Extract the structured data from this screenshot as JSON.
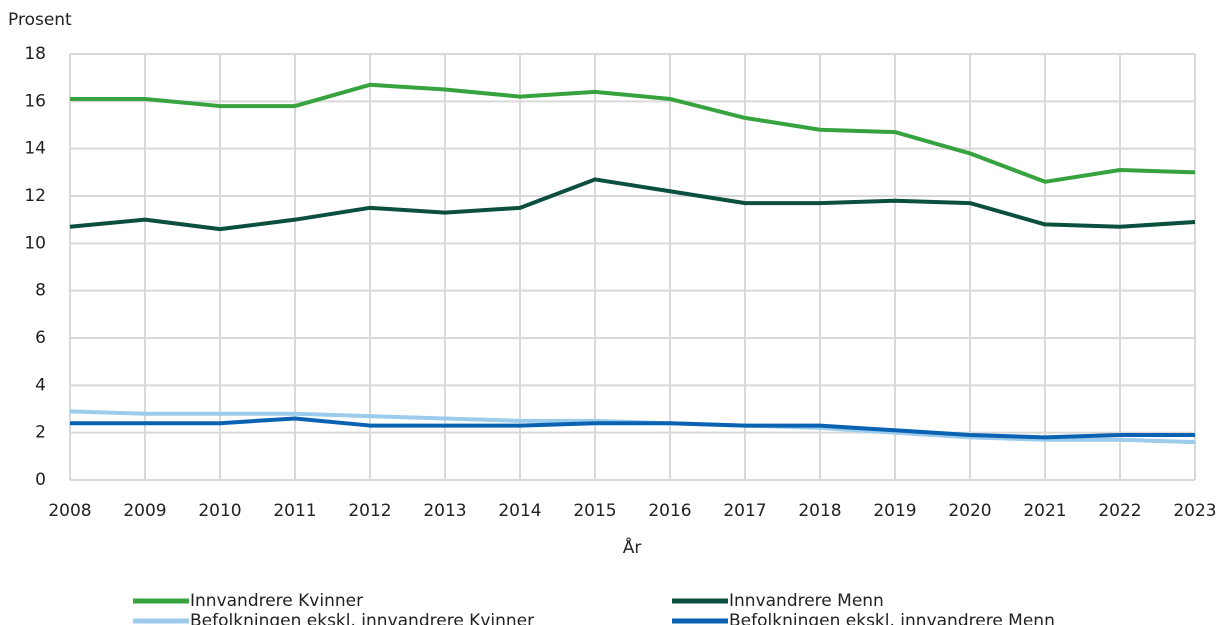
{
  "chart_data": {
    "type": "line",
    "y_label": "Prosent",
    "x_label": "År",
    "x": [
      2008,
      2009,
      2010,
      2011,
      2012,
      2013,
      2014,
      2015,
      2016,
      2017,
      2018,
      2019,
      2020,
      2021,
      2022,
      2023
    ],
    "xlim": [
      2008,
      2023
    ],
    "xticks": [
      2008,
      2009,
      2010,
      2011,
      2012,
      2013,
      2014,
      2015,
      2016,
      2017,
      2018,
      2019,
      2020,
      2021,
      2022,
      2023
    ],
    "ylim": [
      0,
      18
    ],
    "yticks": [
      0,
      2,
      4,
      6,
      8,
      10,
      12,
      14,
      16,
      18
    ],
    "grid": true,
    "legend": "bottom",
    "series": [
      {
        "name": "Innvandrere Kvinner",
        "color": "#36a33f",
        "values": [
          16.1,
          16.1,
          15.8,
          15.8,
          16.7,
          16.5,
          16.2,
          16.4,
          16.1,
          15.3,
          14.8,
          14.7,
          13.8,
          12.6,
          13.1,
          13.0
        ]
      },
      {
        "name": "Innvandrere Menn",
        "color": "#0b4f3f",
        "values": [
          10.7,
          11.0,
          10.6,
          11.0,
          11.5,
          11.3,
          11.5,
          12.7,
          12.2,
          11.7,
          11.7,
          11.8,
          11.7,
          10.8,
          10.7,
          10.9
        ]
      },
      {
        "name": "Befolkningen ekskl. innvandrere Kvinner",
        "color": "#9ccbec",
        "values": [
          2.9,
          2.8,
          2.8,
          2.8,
          2.7,
          2.6,
          2.5,
          2.5,
          2.4,
          2.3,
          2.2,
          2.0,
          1.8,
          1.7,
          1.7,
          1.6
        ]
      },
      {
        "name": "Befolkningen ekskl. innvandrere Menn",
        "color": "#0a62b2",
        "values": [
          2.4,
          2.4,
          2.4,
          2.6,
          2.3,
          2.3,
          2.3,
          2.4,
          2.4,
          2.3,
          2.3,
          2.1,
          1.9,
          1.8,
          1.9,
          1.9
        ]
      }
    ]
  }
}
